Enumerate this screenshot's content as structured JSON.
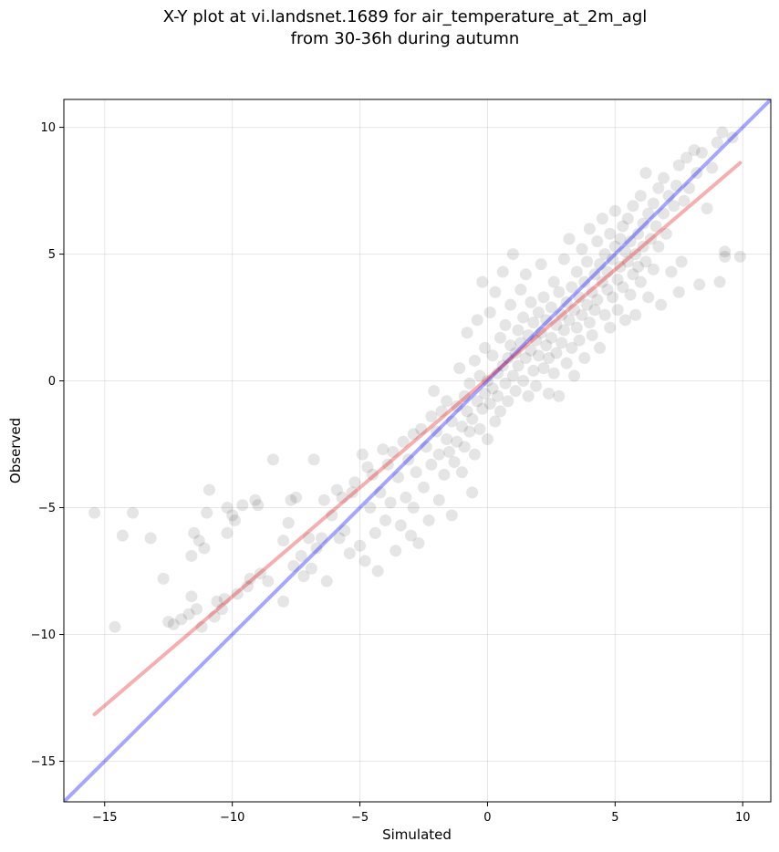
{
  "chart_data": {
    "type": "scatter",
    "title": "X-Y plot at vi.landsnet.1689 for air_temperature_at_2m_agl",
    "subtitle": "from 30-36h during autumn",
    "xlabel": "Simulated",
    "ylabel": "Observed",
    "xlim": [
      -16.6,
      11.1
    ],
    "ylim": [
      -16.6,
      11.1
    ],
    "xticks": [
      -15,
      -10,
      -5,
      0,
      5,
      10
    ],
    "yticks": [
      -15,
      -10,
      -5,
      0,
      5,
      10
    ],
    "xtick_labels": [
      "−15",
      "−10",
      "−5",
      "0",
      "5",
      "10"
    ],
    "ytick_labels": [
      "−15",
      "−10",
      "−5",
      "0",
      "5",
      "10"
    ],
    "grid": true,
    "colors": {
      "points": "#000000",
      "identity_line": "#0000ff",
      "fit_line": "#e31a1c"
    },
    "lines": [
      {
        "kind": "identity",
        "x": [
          -16.6,
          11.1
        ],
        "y": [
          -16.6,
          11.1
        ]
      },
      {
        "kind": "fit",
        "x": [
          -15.4,
          9.9
        ],
        "y": [
          -13.15,
          8.6
        ]
      }
    ],
    "points": [
      [
        -15.4,
        -5.2
      ],
      [
        -14.6,
        -9.7
      ],
      [
        -14.3,
        -6.1
      ],
      [
        -13.9,
        -5.2
      ],
      [
        -13.2,
        -6.2
      ],
      [
        -12.7,
        -7.8
      ],
      [
        -12.5,
        -9.5
      ],
      [
        -12.3,
        -9.6
      ],
      [
        -12.0,
        -9.4
      ],
      [
        -11.7,
        -9.2
      ],
      [
        -11.6,
        -6.9
      ],
      [
        -11.6,
        -8.5
      ],
      [
        -11.5,
        -6.0
      ],
      [
        -11.4,
        -9.0
      ],
      [
        -11.3,
        -6.3
      ],
      [
        -11.2,
        -9.7
      ],
      [
        -11.1,
        -6.6
      ],
      [
        -11.0,
        -5.2
      ],
      [
        -10.9,
        -4.3
      ],
      [
        -10.7,
        -9.3
      ],
      [
        -10.6,
        -8.7
      ],
      [
        -10.4,
        -9.0
      ],
      [
        -10.3,
        -8.6
      ],
      [
        -10.2,
        -6.0
      ],
      [
        -10.2,
        -5.0
      ],
      [
        -10.0,
        -5.3
      ],
      [
        -9.9,
        -5.5
      ],
      [
        -9.8,
        -8.4
      ],
      [
        -9.6,
        -4.9
      ],
      [
        -9.4,
        -8.1
      ],
      [
        -9.3,
        -7.8
      ],
      [
        -9.1,
        -4.7
      ],
      [
        -9.0,
        -4.9
      ],
      [
        -8.9,
        -7.6
      ],
      [
        -8.6,
        -7.9
      ],
      [
        -8.4,
        -3.1
      ],
      [
        -8.0,
        -8.7
      ],
      [
        -8.0,
        -6.3
      ],
      [
        -7.8,
        -5.6
      ],
      [
        -7.7,
        -4.7
      ],
      [
        -7.6,
        -7.3
      ],
      [
        -7.5,
        -4.6
      ],
      [
        -7.3,
        -6.9
      ],
      [
        -7.2,
        -7.7
      ],
      [
        -7.0,
        -6.2
      ],
      [
        -6.9,
        -7.4
      ],
      [
        -6.8,
        -3.1
      ],
      [
        -6.7,
        -6.6
      ],
      [
        -6.5,
        -6.2
      ],
      [
        -6.4,
        -4.7
      ],
      [
        -6.3,
        -7.9
      ],
      [
        -6.1,
        -5.3
      ],
      [
        -5.9,
        -4.3
      ],
      [
        -5.8,
        -6.2
      ],
      [
        -5.7,
        -4.6
      ],
      [
        -5.6,
        -5.9
      ],
      [
        -5.4,
        -6.8
      ],
      [
        -5.3,
        -4.4
      ],
      [
        -5.2,
        -4.0
      ],
      [
        -5.0,
        -6.5
      ],
      [
        -4.9,
        -2.9
      ],
      [
        -4.8,
        -7.1
      ],
      [
        -4.7,
        -3.4
      ],
      [
        -4.6,
        -5.0
      ],
      [
        -4.5,
        -3.7
      ],
      [
        -4.4,
        -6.0
      ],
      [
        -4.3,
        -7.5
      ],
      [
        -4.2,
        -4.4
      ],
      [
        -4.1,
        -2.7
      ],
      [
        -4.0,
        -5.5
      ],
      [
        -3.9,
        -3.3
      ],
      [
        -3.8,
        -4.8
      ],
      [
        -3.7,
        -2.8
      ],
      [
        -3.6,
        -6.7
      ],
      [
        -3.5,
        -3.8
      ],
      [
        -3.4,
        -5.7
      ],
      [
        -3.3,
        -2.4
      ],
      [
        -3.2,
        -4.6
      ],
      [
        -3.1,
        -3.1
      ],
      [
        -3.0,
        -6.1
      ],
      [
        -2.9,
        -2.1
      ],
      [
        -2.9,
        -5.0
      ],
      [
        -2.8,
        -3.6
      ],
      [
        -2.7,
        -6.4
      ],
      [
        -2.6,
        -1.9
      ],
      [
        -2.5,
        -4.2
      ],
      [
        -2.4,
        -2.6
      ],
      [
        -2.3,
        -5.5
      ],
      [
        -2.2,
        -1.4
      ],
      [
        -2.2,
        -3.3
      ],
      [
        -2.1,
        -0.4
      ],
      [
        -2.0,
        -2.0
      ],
      [
        -1.9,
        -4.7
      ],
      [
        -1.9,
        -2.9
      ],
      [
        -1.8,
        -1.2
      ],
      [
        -1.7,
        -3.7
      ],
      [
        -1.6,
        -2.3
      ],
      [
        -1.6,
        -0.8
      ],
      [
        -1.5,
        -2.8
      ],
      [
        -1.4,
        -1.6
      ],
      [
        -1.4,
        -5.3
      ],
      [
        -1.3,
        -3.2
      ],
      [
        -1.2,
        -1.0
      ],
      [
        -1.2,
        -2.4
      ],
      [
        -1.1,
        0.5
      ],
      [
        -1.0,
        -1.8
      ],
      [
        -1.0,
        -3.6
      ],
      [
        -0.9,
        -0.6
      ],
      [
        -0.9,
        -2.6
      ],
      [
        -0.8,
        -1.2
      ],
      [
        -0.8,
        1.9
      ],
      [
        -0.7,
        -2.0
      ],
      [
        -0.7,
        -0.1
      ],
      [
        -0.6,
        -4.4
      ],
      [
        -0.6,
        -1.5
      ],
      [
        -0.5,
        0.8
      ],
      [
        -0.5,
        -2.9
      ],
      [
        -0.4,
        -0.8
      ],
      [
        -0.4,
        2.4
      ],
      [
        -0.3,
        -1.9
      ],
      [
        -0.3,
        0.2
      ],
      [
        -0.2,
        -1.1
      ],
      [
        -0.2,
        3.9
      ],
      [
        -0.1,
        -0.5
      ],
      [
        -0.1,
        1.3
      ],
      [
        0.0,
        -2.3
      ],
      [
        0.0,
        0.0
      ],
      [
        0.1,
        -0.9
      ],
      [
        0.1,
        2.7
      ],
      [
        0.2,
        -0.3
      ],
      [
        0.2,
        1.0
      ],
      [
        0.3,
        -1.6
      ],
      [
        0.3,
        3.5
      ],
      [
        0.4,
        0.3
      ],
      [
        0.4,
        -0.6
      ],
      [
        0.5,
        1.7
      ],
      [
        0.5,
        -1.2
      ],
      [
        0.6,
        0.6
      ],
      [
        0.6,
        4.3
      ],
      [
        0.7,
        -0.1
      ],
      [
        0.7,
        2.2
      ],
      [
        0.8,
        0.9
      ],
      [
        0.8,
        -0.8
      ],
      [
        0.9,
        1.4
      ],
      [
        0.9,
        3.0
      ],
      [
        1.0,
        0.2
      ],
      [
        1.0,
        5.0
      ],
      [
        1.1,
        1.1
      ],
      [
        1.1,
        -0.4
      ],
      [
        1.2,
        2.0
      ],
      [
        1.2,
        0.6
      ],
      [
        1.3,
        3.6
      ],
      [
        1.3,
        1.5
      ],
      [
        1.4,
        0.0
      ],
      [
        1.4,
        2.5
      ],
      [
        1.5,
        0.9
      ],
      [
        1.5,
        4.2
      ],
      [
        1.6,
        1.8
      ],
      [
        1.6,
        -0.6
      ],
      [
        1.7,
        1.2
      ],
      [
        1.7,
        3.1
      ],
      [
        1.8,
        0.4
      ],
      [
        1.8,
        2.3
      ],
      [
        1.9,
        1.6
      ],
      [
        1.9,
        -0.2
      ],
      [
        2.0,
        2.7
      ],
      [
        2.0,
        1.0
      ],
      [
        2.1,
        4.6
      ],
      [
        2.1,
        1.9
      ],
      [
        2.2,
        0.5
      ],
      [
        2.2,
        3.3
      ],
      [
        2.3,
        1.4
      ],
      [
        2.3,
        2.4
      ],
      [
        2.4,
        -0.5
      ],
      [
        2.4,
        0.9
      ],
      [
        2.5,
        2.9
      ],
      [
        2.5,
        1.7
      ],
      [
        2.6,
        3.9
      ],
      [
        2.6,
        0.3
      ],
      [
        2.7,
        2.2
      ],
      [
        2.7,
        1.1
      ],
      [
        2.8,
        3.5
      ],
      [
        2.8,
        -0.6
      ],
      [
        2.9,
        2.6
      ],
      [
        2.9,
        1.5
      ],
      [
        3.0,
        4.8
      ],
      [
        3.0,
        2.0
      ],
      [
        3.1,
        0.7
      ],
      [
        3.1,
        3.1
      ],
      [
        3.2,
        2.4
      ],
      [
        3.2,
        5.6
      ],
      [
        3.3,
        1.3
      ],
      [
        3.3,
        3.7
      ],
      [
        3.4,
        2.8
      ],
      [
        3.4,
        0.2
      ],
      [
        3.5,
        4.3
      ],
      [
        3.5,
        2.1
      ],
      [
        3.6,
        3.3
      ],
      [
        3.6,
        1.6
      ],
      [
        3.7,
        5.2
      ],
      [
        3.7,
        2.6
      ],
      [
        3.8,
        3.9
      ],
      [
        3.8,
        0.9
      ],
      [
        3.9,
        3.0
      ],
      [
        3.9,
        4.7
      ],
      [
        4.0,
        2.3
      ],
      [
        4.0,
        6.0
      ],
      [
        4.1,
        3.5
      ],
      [
        4.1,
        1.8
      ],
      [
        4.2,
        4.2
      ],
      [
        4.2,
        2.8
      ],
      [
        4.3,
        5.5
      ],
      [
        4.3,
        3.2
      ],
      [
        4.4,
        1.3
      ],
      [
        4.4,
        4.6
      ],
      [
        4.5,
        3.9
      ],
      [
        4.5,
        6.4
      ],
      [
        4.6,
        2.6
      ],
      [
        4.6,
        5.0
      ],
      [
        4.7,
        3.6
      ],
      [
        4.7,
        4.3
      ],
      [
        4.8,
        5.8
      ],
      [
        4.8,
        2.1
      ],
      [
        4.9,
        4.8
      ],
      [
        4.9,
        3.3
      ],
      [
        5.0,
        5.3
      ],
      [
        5.0,
        6.7
      ],
      [
        5.1,
        4.0
      ],
      [
        5.1,
        2.8
      ],
      [
        5.2,
        5.6
      ],
      [
        5.2,
        4.5
      ],
      [
        5.3,
        6.1
      ],
      [
        5.3,
        3.7
      ],
      [
        5.4,
        5.1
      ],
      [
        5.4,
        2.4
      ],
      [
        5.5,
        4.7
      ],
      [
        5.5,
        6.4
      ],
      [
        5.6,
        5.5
      ],
      [
        5.6,
        3.4
      ],
      [
        5.7,
        4.2
      ],
      [
        5.7,
        6.9
      ],
      [
        5.8,
        5.0
      ],
      [
        5.8,
        2.6
      ],
      [
        5.9,
        5.8
      ],
      [
        5.9,
        4.5
      ],
      [
        6.0,
        7.3
      ],
      [
        6.0,
        3.9
      ],
      [
        6.1,
        6.2
      ],
      [
        6.1,
        5.3
      ],
      [
        6.2,
        4.7
      ],
      [
        6.2,
        8.2
      ],
      [
        6.3,
        6.6
      ],
      [
        6.3,
        3.3
      ],
      [
        6.4,
        5.6
      ],
      [
        6.5,
        7.0
      ],
      [
        6.5,
        4.4
      ],
      [
        6.6,
        6.1
      ],
      [
        6.7,
        7.6
      ],
      [
        6.7,
        5.3
      ],
      [
        6.8,
        3.0
      ],
      [
        6.9,
        6.6
      ],
      [
        6.9,
        8.0
      ],
      [
        7.0,
        5.8
      ],
      [
        7.1,
        7.3
      ],
      [
        7.2,
        4.3
      ],
      [
        7.3,
        6.9
      ],
      [
        7.4,
        7.7
      ],
      [
        7.5,
        8.5
      ],
      [
        7.5,
        3.5
      ],
      [
        7.6,
        4.7
      ],
      [
        7.7,
        7.1
      ],
      [
        7.8,
        8.8
      ],
      [
        7.9,
        7.6
      ],
      [
        8.1,
        9.1
      ],
      [
        8.2,
        8.2
      ],
      [
        8.3,
        3.8
      ],
      [
        8.4,
        9.0
      ],
      [
        8.6,
        6.8
      ],
      [
        8.8,
        8.4
      ],
      [
        9.0,
        9.4
      ],
      [
        9.1,
        3.9
      ],
      [
        9.2,
        9.8
      ],
      [
        9.3,
        5.1
      ],
      [
        9.3,
        4.9
      ],
      [
        9.6,
        9.6
      ],
      [
        9.9,
        4.9
      ]
    ]
  }
}
